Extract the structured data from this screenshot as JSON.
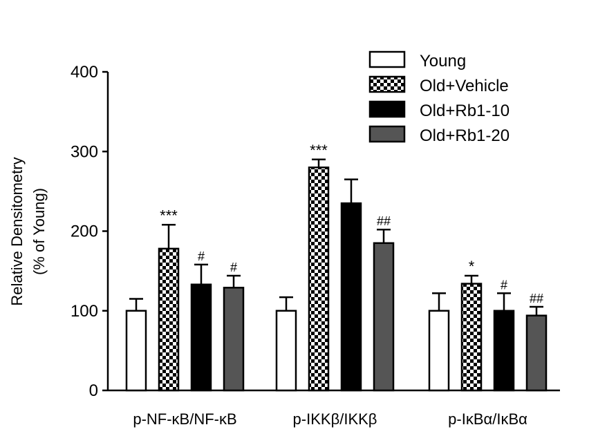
{
  "chart_data": {
    "type": "bar",
    "title": "",
    "xlabel": "",
    "ylabel": "Relative Densitometry",
    "ylabel_sub": "(% of Young)",
    "ylim": [
      0,
      400
    ],
    "yticks": [
      0,
      100,
      200,
      300,
      400
    ],
    "categories": [
      "p-NF-κB/NF-κB",
      "p-IKKβ/IKKβ",
      "p-IκBα/IκBα"
    ],
    "series": [
      {
        "name": "Young",
        "pattern": "white",
        "values": [
          100,
          100,
          100
        ],
        "errors": [
          15,
          17,
          22
        ],
        "sig": [
          "",
          "",
          ""
        ]
      },
      {
        "name": "Old+Vehicle",
        "pattern": "checker",
        "values": [
          178,
          280,
          134
        ],
        "errors": [
          30,
          10,
          10
        ],
        "sig": [
          "***",
          "***",
          "*"
        ]
      },
      {
        "name": "Old+Rb1-10",
        "pattern": "black",
        "values": [
          133,
          235,
          100
        ],
        "errors": [
          25,
          30,
          22
        ],
        "sig": [
          "#",
          "",
          "#"
        ]
      },
      {
        "name": "Old+Rb1-20",
        "pattern": "gray",
        "values": [
          129,
          185,
          94
        ],
        "errors": [
          15,
          17,
          11
        ],
        "sig": [
          "#",
          "##",
          "##"
        ]
      }
    ],
    "legend": "top-right",
    "colors": {
      "white": "#ffffff",
      "black": "#000000",
      "gray": "#555555",
      "stroke": "#000000"
    }
  }
}
